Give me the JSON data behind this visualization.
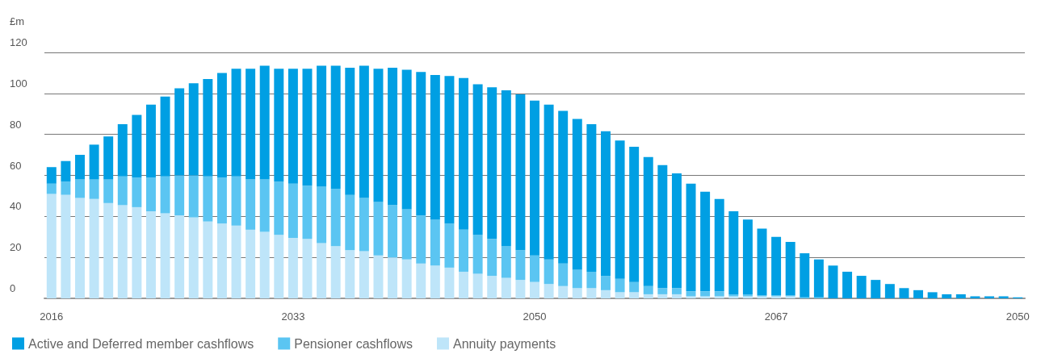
{
  "chart_data": {
    "type": "bar",
    "stacked": true,
    "ylabel": "£m",
    "categories": [
      "2016",
      null,
      null,
      null,
      null,
      null,
      null,
      null,
      null,
      null,
      null,
      null,
      null,
      null,
      null,
      null,
      null,
      "2033",
      null,
      null,
      null,
      null,
      null,
      null,
      null,
      null,
      null,
      null,
      null,
      null,
      null,
      null,
      null,
      null,
      "2050",
      null,
      null,
      null,
      null,
      null,
      null,
      null,
      null,
      null,
      null,
      null,
      null,
      null,
      null,
      null,
      null,
      "2067",
      null,
      null,
      null,
      null,
      null,
      null,
      null,
      null,
      null,
      null,
      null,
      null,
      null,
      null,
      null,
      null,
      "2050"
    ],
    "series": [
      {
        "name": "Annuity payments",
        "color": "#bee5f9",
        "values": [
          51,
          50.5,
          49,
          48.5,
          46.5,
          45.5,
          44.5,
          42.5,
          41.5,
          40.5,
          39.5,
          37.5,
          36.5,
          35.5,
          33.5,
          32.5,
          31,
          29.5,
          29,
          27,
          25.5,
          23.5,
          23,
          21,
          20,
          19,
          17,
          16,
          15,
          13,
          12,
          11,
          10,
          9,
          8,
          7,
          6,
          5,
          5,
          4,
          3,
          3,
          2,
          2,
          2,
          1,
          1,
          1,
          1,
          1,
          1,
          1,
          1,
          0,
          0,
          0,
          0,
          0,
          0,
          0,
          0,
          0,
          0,
          0,
          0,
          0,
          0,
          0,
          0
        ]
      },
      {
        "name": "Pensioner cashflows",
        "color": "#5bc5f2",
        "values": [
          5,
          6.5,
          9,
          9.5,
          11.5,
          14,
          14.5,
          16.5,
          18,
          19.5,
          20.5,
          22,
          22.5,
          24,
          24.5,
          25.5,
          26,
          26.5,
          26,
          27.5,
          28,
          27,
          26,
          26,
          25.5,
          24.5,
          23.5,
          22.5,
          21.5,
          20.5,
          19,
          18,
          15.5,
          14.5,
          13,
          12,
          11,
          9,
          8,
          7,
          6.5,
          5,
          4,
          3,
          3,
          2.5,
          2.5,
          2.5,
          1,
          1,
          0.5,
          0.5,
          0.5,
          0.5,
          0.5,
          0,
          0,
          0,
          0,
          0,
          0,
          0,
          0,
          0,
          0,
          0,
          0,
          0,
          0
        ]
      },
      {
        "name": "Active and Deferred member cashflows",
        "color": "#009fe3",
        "values": [
          8,
          10,
          12,
          17,
          21,
          25.5,
          30.5,
          35.5,
          39,
          42.5,
          45,
          47.5,
          51,
          52.5,
          54,
          55.5,
          55,
          56,
          57,
          59,
          60,
          62,
          64.5,
          65,
          67,
          68,
          70,
          70.5,
          72,
          74,
          73.5,
          74,
          76,
          76,
          75.5,
          75.5,
          74.5,
          73.5,
          72,
          70.5,
          67.5,
          66,
          63,
          60,
          56,
          52.5,
          48.5,
          45,
          40.5,
          36.5,
          32.5,
          28.5,
          26,
          21.5,
          18.5,
          16,
          13,
          11,
          9,
          7,
          5,
          4,
          3,
          2,
          2,
          1,
          1,
          1,
          0.5
        ]
      }
    ],
    "ylim": [
      0,
      120
    ],
    "yticks": [
      0,
      20,
      40,
      60,
      80,
      100,
      120
    ],
    "grid": "y",
    "legend": "bottom left"
  }
}
